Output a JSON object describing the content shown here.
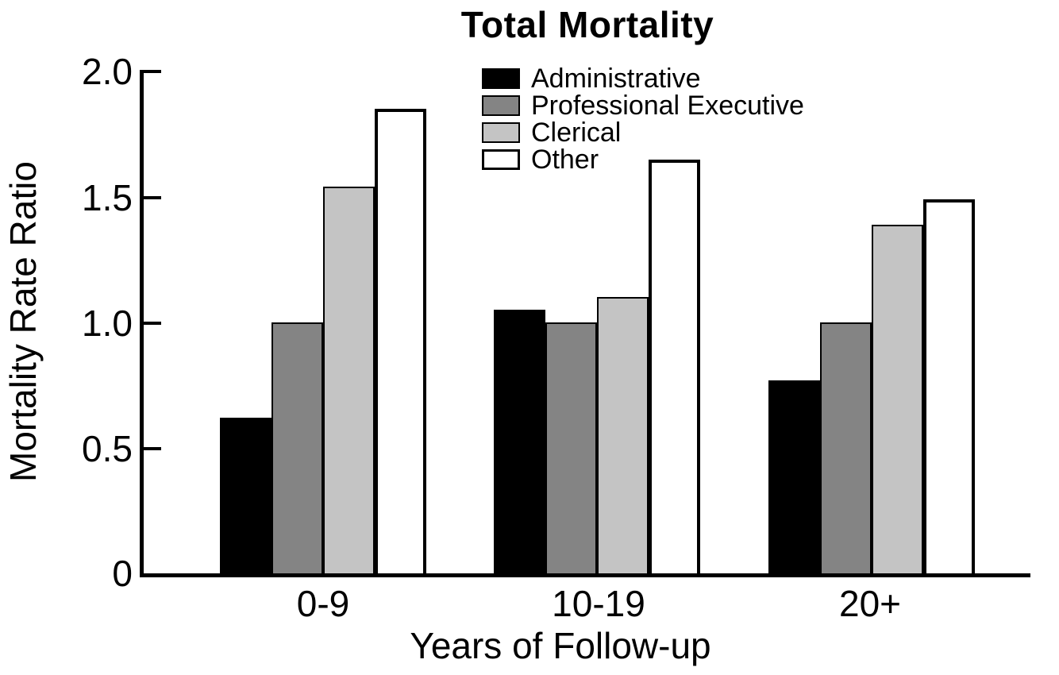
{
  "title": "Total Mortality",
  "y_axis": {
    "label": "Mortality Rate Ratio",
    "ticks": [
      "2.0",
      "1.5",
      "1.0",
      "0.5",
      "0"
    ]
  },
  "x_axis": {
    "label": "Years of Follow-up",
    "categories": [
      "0-9",
      "10-19",
      "20+"
    ]
  },
  "chart_data": {
    "type": "bar",
    "title": "Total Mortality",
    "xlabel": "Years of Follow-up",
    "ylabel": "Mortality Rate Ratio",
    "ylim": [
      0,
      2.0
    ],
    "y_tick_values": [
      0,
      0.5,
      1.0,
      1.5,
      2.0
    ],
    "grid": false,
    "legend_position": "upper center",
    "categories": [
      "0-9",
      "10-19",
      "20+"
    ],
    "series": [
      {
        "name": "Administrative",
        "color": "#000000",
        "values": [
          0.62,
          1.05,
          0.77
        ]
      },
      {
        "name": "Professional Executive",
        "color": "#848484",
        "values": [
          1.0,
          1.0,
          1.0
        ]
      },
      {
        "name": "Clerical",
        "color": "#c4c4c4",
        "values": [
          1.54,
          1.1,
          1.39
        ]
      },
      {
        "name": "Other",
        "color": "#ffffff",
        "values": [
          1.85,
          1.65,
          1.49
        ]
      }
    ]
  }
}
